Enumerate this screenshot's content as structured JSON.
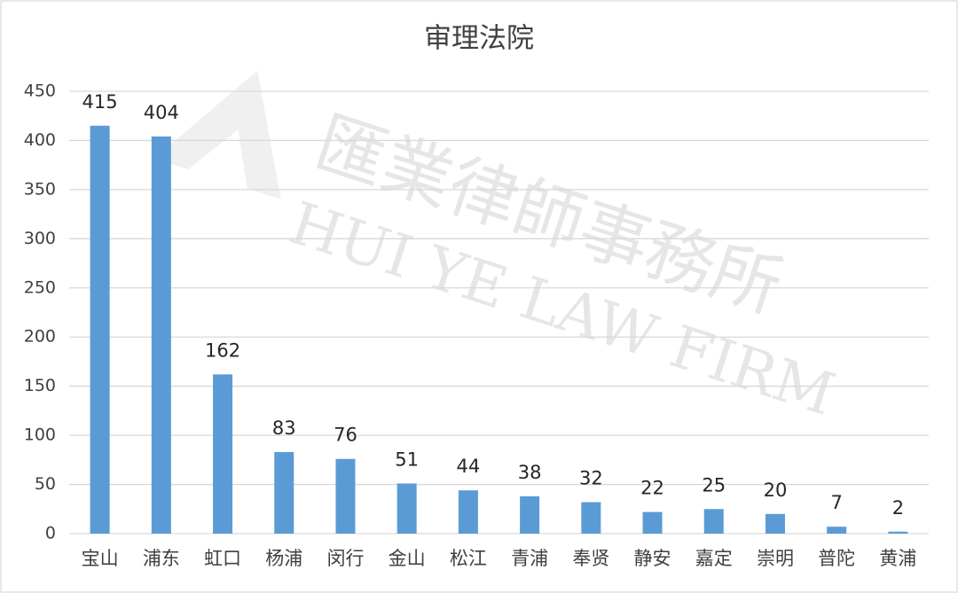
{
  "chart_data": {
    "type": "bar",
    "title": "审理法院",
    "categories": [
      "宝山",
      "浦东",
      "虹口",
      "杨浦",
      "闵行",
      "金山",
      "松江",
      "青浦",
      "奉贤",
      "静安",
      "嘉定",
      "崇明",
      "普陀",
      "黄浦"
    ],
    "values": [
      415,
      404,
      162,
      83,
      76,
      51,
      44,
      38,
      32,
      22,
      25,
      20,
      7,
      2
    ],
    "color": "#5b9bd5",
    "ylim": [
      0,
      450
    ],
    "yticks": [
      0,
      50,
      100,
      150,
      200,
      250,
      300,
      350,
      400,
      450
    ],
    "grid": true,
    "watermark": {
      "name": "匯業律師事務所",
      "name_en": "HUI YE LAW FIRM"
    }
  }
}
